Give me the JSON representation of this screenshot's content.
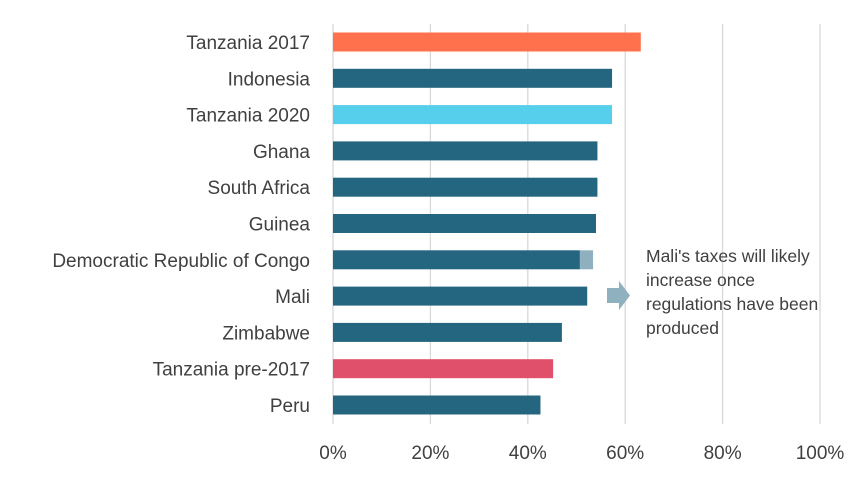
{
  "chart_data": {
    "type": "bar",
    "orientation": "horizontal",
    "categories": [
      "Tanzania 2017",
      "Indonesia",
      "Tanzania 2020",
      "Ghana",
      "South Africa",
      "Guinea",
      "Democratic Republic of Congo",
      "Mali",
      "Zimbabwe",
      "Tanzania pre-2017",
      "Peru"
    ],
    "values": [
      63.2,
      57.3,
      57.3,
      54.3,
      54.3,
      54.0,
      50.7,
      52.2,
      47.0,
      45.2,
      42.6
    ],
    "extra_segment": {
      "category": "Democratic Republic of Congo",
      "from": 50.7,
      "to": 53.4,
      "color": "#8fb0bf"
    },
    "colors": [
      "#ff704d",
      "#24667f",
      "#55cfeb",
      "#24667f",
      "#24667f",
      "#24667f",
      "#24667f",
      "#24667f",
      "#24667f",
      "#e0506a",
      "#24667f"
    ],
    "xlim": [
      0,
      100
    ],
    "x_ticks": [
      "0%",
      "20%",
      "40%",
      "60%",
      "80%",
      "100%"
    ],
    "grid": true,
    "title": "",
    "xlabel": "",
    "ylabel": ""
  },
  "annotation": {
    "lines": [
      "Mali's taxes will likely",
      "increase once",
      "regulations have been",
      "produced"
    ],
    "arrow_color": "#8fb0bf"
  }
}
